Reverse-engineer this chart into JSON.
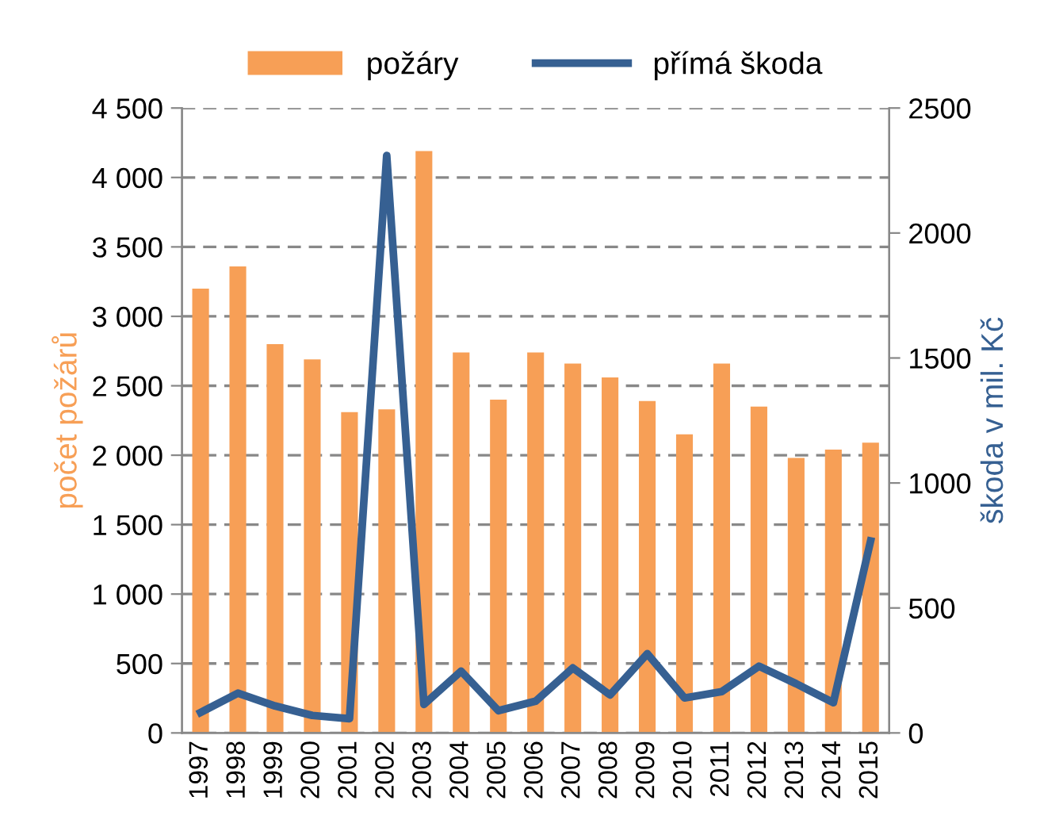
{
  "chart_data": {
    "type": "bar",
    "categories": [
      "1997",
      "1998",
      "1999",
      "2000",
      "2001",
      "2002",
      "2003",
      "2004",
      "2005",
      "2006",
      "2007",
      "2008",
      "2009",
      "2010",
      "2011",
      "2012",
      "2013",
      "2014",
      "2015"
    ],
    "series": [
      {
        "name": "požáry",
        "color": "#f79f56",
        "values": [
          3200,
          3360,
          2800,
          2690,
          2310,
          2330,
          4190,
          2740,
          2400,
          2740,
          2660,
          2560,
          2390,
          2150,
          2660,
          2350,
          1980,
          2040,
          2090
        ]
      },
      {
        "name": "přímá škoda",
        "type": "line",
        "axis": "y2",
        "color": "#366092",
        "values": [
          82,
          159,
          108,
          70,
          57,
          2310,
          114,
          247,
          89,
          127,
          260,
          152,
          317,
          140,
          165,
          267,
          197,
          121,
          768
        ]
      }
    ],
    "ylabel": "počet požárů",
    "y2label": "škoda v mil. Kč",
    "ylim": [
      0,
      4500
    ],
    "yticks": [
      0,
      500,
      {
        "value": 1000,
        "label": "1 000"
      },
      {
        "value": 1500,
        "label": "1 500"
      },
      {
        "value": 2000,
        "label": "2 000"
      },
      {
        "value": 2500,
        "label": "2 500"
      },
      {
        "value": 3000,
        "label": "3 000"
      },
      {
        "value": 3500,
        "label": "3 500"
      },
      {
        "value": 4000,
        "label": "4 000"
      },
      {
        "value": 4500,
        "label": "4 500"
      }
    ],
    "y2lim": [
      0,
      2500
    ],
    "y2ticks": [
      0,
      500,
      1000,
      1500,
      2000,
      2500
    ],
    "grid": "y",
    "legend": "top",
    "marker": "none",
    "line_style": "solid"
  }
}
